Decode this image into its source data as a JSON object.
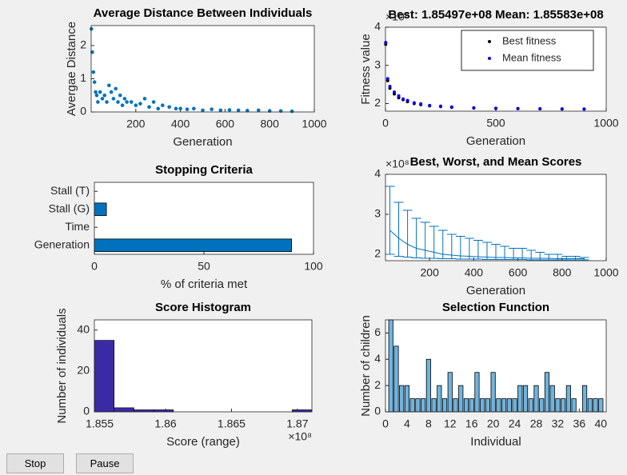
{
  "chart_data": [
    {
      "type": "scatter",
      "title": "Average Distance Between Individuals",
      "xlabel": "Generation",
      "ylabel": "Avergae Distance",
      "color": "#0072bd",
      "x": [
        1,
        5,
        10,
        15,
        20,
        25,
        30,
        40,
        50,
        60,
        70,
        80,
        90,
        100,
        110,
        120,
        130,
        140,
        150,
        160,
        180,
        200,
        220,
        240,
        260,
        280,
        300,
        320,
        350,
        380,
        400,
        430,
        460,
        500,
        540,
        580,
        620,
        660,
        700,
        750,
        800,
        850,
        900
      ],
      "y": [
        2.5,
        1.8,
        1.2,
        0.9,
        0.6,
        0.5,
        0.3,
        0.6,
        0.4,
        0.5,
        0.3,
        0.8,
        0.6,
        0.4,
        0.7,
        0.3,
        0.5,
        0.2,
        0.4,
        0.3,
        0.3,
        0.2,
        0.25,
        0.4,
        0.15,
        0.3,
        0.1,
        0.2,
        0.15,
        0.1,
        0.1,
        0.08,
        0.1,
        0.05,
        0.08,
        0.05,
        0.06,
        0.05,
        0.04,
        0.05,
        0.03,
        0.03,
        0.02
      ],
      "xlim": [
        0,
        1000
      ],
      "xticks": [
        200,
        400,
        600,
        800,
        1000
      ],
      "ylim": [
        0,
        2.6
      ],
      "yticks": [
        0,
        1,
        2
      ]
    },
    {
      "type": "line",
      "title": "Best: 1.85497e+08 Mean: 1.85583e+08",
      "xlabel": "Generation",
      "ylabel": "Fitness value",
      "y_exponent": "×10⁸",
      "legend": "northeast",
      "x": [
        1,
        10,
        20,
        40,
        60,
        80,
        100,
        130,
        160,
        200,
        250,
        300,
        400,
        500,
        600,
        700,
        800,
        900
      ],
      "series": [
        {
          "name": "Best fitness",
          "color": "#000000",
          "values": [
            3.55,
            2.6,
            2.4,
            2.25,
            2.15,
            2.1,
            2.05,
            2.0,
            1.97,
            1.94,
            1.92,
            1.9,
            1.88,
            1.87,
            1.865,
            1.86,
            1.857,
            1.855
          ]
        },
        {
          "name": "Mean fitness",
          "color": "#0000ff",
          "values": [
            3.6,
            2.65,
            2.45,
            2.3,
            2.2,
            2.12,
            2.08,
            2.02,
            1.99,
            1.95,
            1.93,
            1.91,
            1.89,
            1.875,
            1.868,
            1.862,
            1.858,
            1.856
          ]
        }
      ],
      "xlim": [
        0,
        1000
      ],
      "xticks": [
        0,
        500,
        1000
      ],
      "ylim": [
        1.8,
        4
      ],
      "yticks": [
        2,
        3,
        4
      ]
    },
    {
      "type": "bar",
      "orientation": "horizontal",
      "title": "Stopping Criteria",
      "xlabel": "% of criteria met",
      "color": "#0072bd",
      "categories": [
        "Generation",
        "Time",
        "Stall (G)",
        "Stall (T)"
      ],
      "values": [
        90,
        0,
        5.5,
        0
      ],
      "xlim": [
        0,
        100
      ],
      "xticks": [
        0,
        50,
        100
      ]
    },
    {
      "type": "errorbar",
      "title": "Best, Worst, and Mean Scores",
      "xlabel": "Generation",
      "y_exponent": "×10⁸",
      "color": "#0072bd",
      "x": [
        20,
        60,
        100,
        140,
        180,
        220,
        260,
        300,
        340,
        380,
        420,
        460,
        500,
        540,
        580,
        620,
        660,
        700,
        740,
        780,
        820,
        860,
        900
      ],
      "values": [
        2.6,
        2.4,
        2.25,
        2.15,
        2.1,
        2.05,
        2.0,
        1.98,
        1.96,
        1.95,
        1.94,
        1.93,
        1.92,
        1.92,
        1.91,
        1.91,
        1.9,
        1.9,
        1.9,
        1.89,
        1.89,
        1.89,
        1.89
      ],
      "lower": [
        2.0,
        1.95,
        1.93,
        1.91,
        1.9,
        1.9,
        1.89,
        1.89,
        1.88,
        1.88,
        1.88,
        1.87,
        1.87,
        1.87,
        1.87,
        1.87,
        1.86,
        1.86,
        1.86,
        1.86,
        1.86,
        1.86,
        1.86
      ],
      "upper": [
        3.7,
        3.3,
        3.1,
        2.9,
        2.8,
        2.7,
        2.6,
        2.5,
        2.45,
        2.4,
        2.35,
        2.3,
        2.25,
        2.2,
        2.15,
        2.15,
        2.1,
        2.05,
        2.0,
        2.0,
        1.95,
        1.95,
        1.92
      ],
      "xlim": [
        0,
        1000
      ],
      "xticks": [
        200,
        400,
        600,
        800,
        1000
      ],
      "ylim": [
        1.84,
        4
      ],
      "yticks": [
        2,
        3,
        4
      ]
    },
    {
      "type": "histogram",
      "title": "Score Histogram",
      "xlabel": "Score (range)",
      "ylabel": "Number of individuals",
      "x_exponent": "×10⁸",
      "color": "#3a2aa5",
      "bins": [
        1.8546,
        1.8561,
        1.8576,
        1.8591,
        1.8606,
        1.8621,
        1.8636,
        1.8651,
        1.8666,
        1.8681,
        1.8696,
        1.8711
      ],
      "values": [
        35,
        2,
        1,
        1,
        0,
        0,
        0,
        0,
        0,
        0,
        1
      ],
      "xlim": [
        1.8546,
        1.8711
      ],
      "xticks": [
        1.855,
        1.86,
        1.865,
        1.87
      ],
      "ylim": [
        0,
        45
      ],
      "yticks": [
        0,
        20,
        40
      ]
    },
    {
      "type": "bar",
      "title": "Selection Function",
      "xlabel": "Individual",
      "ylabel": "Number of children",
      "color": "#6fb4df",
      "x": [
        1,
        2,
        3,
        4,
        5,
        6,
        7,
        8,
        9,
        10,
        11,
        12,
        13,
        14,
        15,
        16,
        17,
        18,
        19,
        20,
        21,
        22,
        23,
        24,
        25,
        26,
        27,
        28,
        29,
        30,
        31,
        32,
        33,
        34,
        35,
        36,
        37,
        38,
        39,
        40
      ],
      "values": [
        7,
        5,
        2,
        2,
        1,
        1,
        1,
        4,
        1,
        2,
        1,
        3,
        1,
        2,
        1,
        1,
        3,
        1,
        1,
        3,
        1,
        1,
        1,
        1,
        2,
        2,
        1,
        2,
        1,
        3,
        2,
        1,
        1,
        2,
        1,
        0,
        2,
        1,
        1,
        1
      ],
      "xlim": [
        0,
        41
      ],
      "xticks": [
        0,
        4,
        8,
        12,
        16,
        20,
        24,
        28,
        32,
        36,
        40
      ],
      "ylim": [
        0,
        7
      ],
      "yticks": [
        0,
        2,
        4,
        6
      ]
    }
  ],
  "buttons": [
    "Stop",
    "Pause"
  ]
}
